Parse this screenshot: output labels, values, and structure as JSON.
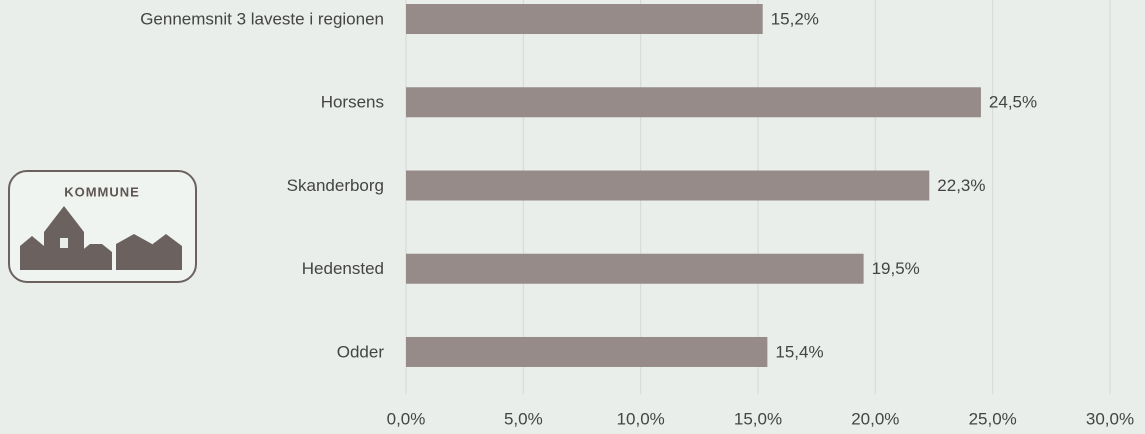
{
  "logo": {
    "text": "KOMMUNE"
  },
  "chart_data": {
    "type": "bar",
    "orientation": "horizontal",
    "categories": [
      "Gennemsnit 3 laveste i regionen",
      "Horsens",
      "Skanderborg",
      "Hedensted",
      "Odder"
    ],
    "values": [
      15.2,
      24.5,
      22.3,
      19.5,
      15.4
    ],
    "value_labels": [
      "15,2%",
      "24,5%",
      "22,3%",
      "19,5%",
      "15,4%"
    ],
    "color": "#968b88",
    "xlim": [
      0,
      30
    ],
    "xticks": [
      {
        "value": 0,
        "label": "0,0%"
      },
      {
        "value": 5,
        "label": "5,0%"
      },
      {
        "value": 10,
        "label": "10,0%"
      },
      {
        "value": 15,
        "label": "15,0%"
      },
      {
        "value": 20,
        "label": "20,0%"
      },
      {
        "value": 25,
        "label": "25,0%"
      },
      {
        "value": 30,
        "label": "30,0%"
      }
    ],
    "grid": true
  }
}
